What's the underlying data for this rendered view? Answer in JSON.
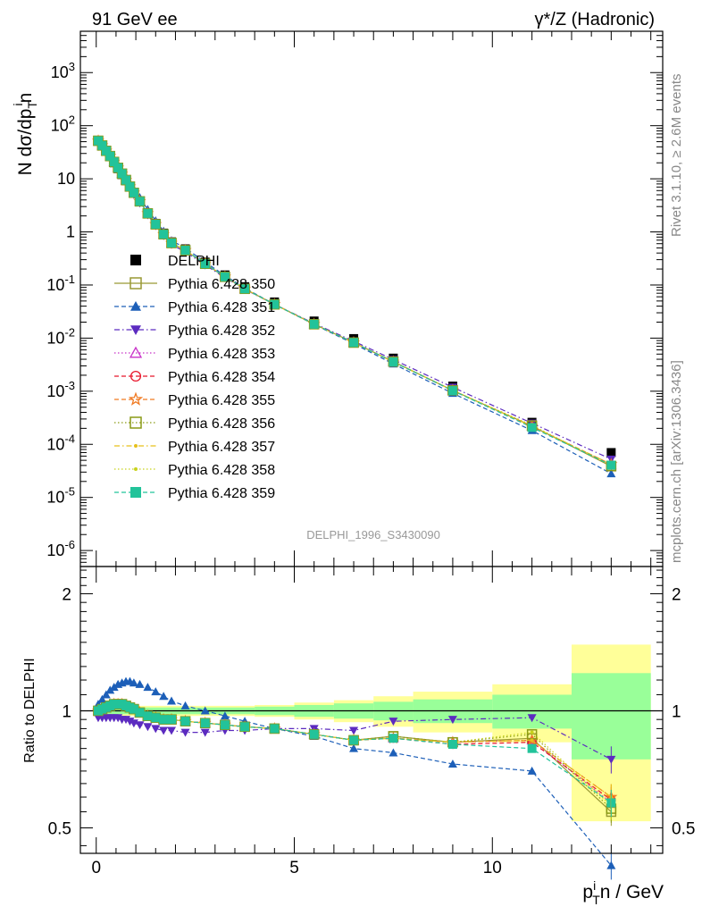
{
  "header": {
    "left": "91 GeV ee",
    "right": "γ*/Z (Hadronic)"
  },
  "side_labels": {
    "rivet": "Rivet 3.1.10, ≥ 2.6M events",
    "mcplots": "mcplots.cern.ch [arXiv:1306.3436]"
  },
  "analysis_id": "DELPHI_1996_S3430090",
  "y_label_main": {
    "a": "N dσ/dp",
    "sub": "T",
    "sup": "i",
    "b": "n"
  },
  "y_label_ratio": "Ratio to DELPHI",
  "x_label": {
    "a": "p",
    "sup": "i",
    "sub": "T",
    "b": "n / GeV"
  },
  "legend_order": [
    "DELPHI",
    "Pythia 6.428 350",
    "Pythia 6.428 351",
    "Pythia 6.428 352",
    "Pythia 6.428 353",
    "Pythia 6.428 354",
    "Pythia 6.428 355",
    "Pythia 6.428 356",
    "Pythia 6.428 357",
    "Pythia 6.428 358",
    "Pythia 6.428 359"
  ],
  "chart_data": [
    {
      "type": "scatter",
      "panel": "main",
      "x_range": [
        -0.4,
        14.3
      ],
      "ylim": [
        5e-07,
        6000
      ],
      "log_y": true,
      "y_tick_labels": [
        "10^-6",
        "10^-5",
        "10^-4",
        "10^-3",
        "10^-2",
        "10^-1",
        "1",
        "10",
        "10^2",
        "10^3"
      ],
      "x": [
        0.05,
        0.15,
        0.25,
        0.35,
        0.45,
        0.55,
        0.65,
        0.75,
        0.85,
        0.95,
        1.1,
        1.3,
        1.5,
        1.7,
        1.9,
        2.25,
        2.75,
        3.25,
        3.75,
        4.5,
        5.5,
        6.5,
        7.5,
        9.0,
        11.0,
        13.0
      ],
      "data": {
        "name": "DELPHI",
        "values": [
          52,
          42,
          33,
          26,
          20,
          15.5,
          12,
          9.2,
          7.0,
          5.4,
          3.8,
          2.3,
          1.45,
          0.95,
          0.65,
          0.48,
          0.27,
          0.155,
          0.093,
          0.048,
          0.021,
          0.0098,
          0.0042,
          0.00125,
          0.00026,
          7e-05
        ],
        "color": "#000000",
        "marker": "filled-square"
      },
      "series": [
        {
          "name": "Pythia 6.428 350",
          "color": "#999933",
          "marker": "open-square",
          "line": "solid"
        },
        {
          "name": "Pythia 6.428 351",
          "color": "#1d5fb8",
          "marker": "filled-triangle-up",
          "line": "dashed"
        },
        {
          "name": "Pythia 6.428 352",
          "color": "#5c2bc0",
          "marker": "filled-triangle-down",
          "line": "dashdot"
        },
        {
          "name": "Pythia 6.428 353",
          "color": "#c832c8",
          "marker": "open-triangle-up",
          "line": "dotted"
        },
        {
          "name": "Pythia 6.428 354",
          "color": "#e8162b",
          "marker": "open-circle",
          "line": "dashed"
        },
        {
          "name": "Pythia 6.428 355",
          "color": "#f07a22",
          "marker": "open-star",
          "line": "dashed"
        },
        {
          "name": "Pythia 6.428 356",
          "color": "#8a9a16",
          "marker": "open-square",
          "line": "dotted"
        },
        {
          "name": "Pythia 6.428 357",
          "color": "#e6c01a",
          "marker": "small-dot",
          "line": "dashdot"
        },
        {
          "name": "Pythia 6.428 358",
          "color": "#c8d21c",
          "marker": "small-dot",
          "line": "dotted"
        },
        {
          "name": "Pythia 6.428 359",
          "color": "#22c39a",
          "marker": "filled-square",
          "line": "dashed"
        }
      ]
    },
    {
      "type": "scatter",
      "panel": "ratio",
      "x_range": [
        -0.4,
        14.3
      ],
      "ylim": [
        0.43,
        2.35
      ],
      "log_y": true,
      "y_tick_labels": [
        "0.5",
        "1",
        "2"
      ],
      "reference_line": 1,
      "uncertainty_bins": [
        {
          "x0": 0,
          "x1": 4,
          "stat": 0.02,
          "total": 0.03
        },
        {
          "x0": 4,
          "x1": 5,
          "stat": 0.025,
          "total": 0.035
        },
        {
          "x0": 5,
          "x1": 6,
          "stat": 0.035,
          "total": 0.05
        },
        {
          "x0": 6,
          "x1": 7,
          "stat": 0.045,
          "total": 0.065
        },
        {
          "x0": 7,
          "x1": 8,
          "stat": 0.055,
          "total": 0.09
        },
        {
          "x0": 8,
          "x1": 10,
          "stat": 0.07,
          "total": 0.12
        },
        {
          "x0": 10,
          "x1": 12,
          "stat": 0.1,
          "total": 0.17
        },
        {
          "x0": 12,
          "x1": 14,
          "stat": 0.25,
          "total": 0.48
        }
      ],
      "ratios": {
        "Pythia 6.428 350": [
          1.0,
          1.01,
          1.02,
          1.03,
          1.04,
          1.04,
          1.04,
          1.03,
          1.02,
          1.01,
          0.99,
          0.97,
          0.96,
          0.95,
          0.95,
          0.94,
          0.93,
          0.92,
          0.91,
          0.9,
          0.87,
          0.84,
          0.86,
          0.83,
          0.85,
          0.55
        ],
        "Pythia 6.428 351": [
          1.04,
          1.07,
          1.1,
          1.13,
          1.15,
          1.17,
          1.18,
          1.19,
          1.19,
          1.18,
          1.17,
          1.15,
          1.12,
          1.09,
          1.06,
          1.03,
          1.0,
          0.97,
          0.94,
          0.9,
          0.86,
          0.8,
          0.78,
          0.73,
          0.7,
          0.4
        ],
        "Pythia 6.428 352": [
          0.96,
          0.96,
          0.96,
          0.96,
          0.96,
          0.96,
          0.95,
          0.95,
          0.94,
          0.93,
          0.92,
          0.91,
          0.9,
          0.89,
          0.89,
          0.88,
          0.88,
          0.89,
          0.89,
          0.9,
          0.9,
          0.89,
          0.94,
          0.95,
          0.96,
          0.75
        ],
        "Pythia 6.428 353": [
          1.0,
          1.01,
          1.02,
          1.03,
          1.04,
          1.04,
          1.04,
          1.03,
          1.02,
          1.01,
          0.99,
          0.97,
          0.96,
          0.95,
          0.95,
          0.94,
          0.93,
          0.92,
          0.91,
          0.9,
          0.87,
          0.84,
          0.85,
          0.83,
          0.84,
          0.58
        ],
        "Pythia 6.428 354": [
          1.0,
          1.01,
          1.02,
          1.03,
          1.04,
          1.04,
          1.04,
          1.03,
          1.02,
          1.01,
          0.99,
          0.97,
          0.96,
          0.95,
          0.95,
          0.94,
          0.93,
          0.92,
          0.91,
          0.9,
          0.87,
          0.84,
          0.85,
          0.82,
          0.83,
          0.59
        ],
        "Pythia 6.428 355": [
          1.0,
          1.01,
          1.02,
          1.03,
          1.04,
          1.04,
          1.04,
          1.03,
          1.02,
          1.01,
          0.99,
          0.97,
          0.96,
          0.95,
          0.95,
          0.94,
          0.93,
          0.92,
          0.91,
          0.9,
          0.87,
          0.84,
          0.85,
          0.83,
          0.84,
          0.6
        ],
        "Pythia 6.428 356": [
          1.0,
          1.01,
          1.02,
          1.03,
          1.04,
          1.04,
          1.04,
          1.03,
          1.02,
          1.01,
          0.99,
          0.97,
          0.96,
          0.95,
          0.95,
          0.94,
          0.93,
          0.92,
          0.91,
          0.9,
          0.87,
          0.84,
          0.86,
          0.83,
          0.87,
          0.56
        ],
        "Pythia 6.428 357": [
          1.0,
          1.01,
          1.02,
          1.03,
          1.04,
          1.04,
          1.04,
          1.03,
          1.02,
          1.01,
          0.99,
          0.97,
          0.96,
          0.95,
          0.95,
          0.94,
          0.93,
          0.92,
          0.91,
          0.9,
          0.87,
          0.84,
          0.85,
          0.83,
          0.84,
          0.6
        ],
        "Pythia 6.428 358": [
          1.0,
          1.01,
          1.02,
          1.03,
          1.04,
          1.04,
          1.04,
          1.03,
          1.02,
          1.01,
          0.99,
          0.97,
          0.96,
          0.95,
          0.95,
          0.94,
          0.93,
          0.92,
          0.91,
          0.9,
          0.87,
          0.84,
          0.85,
          0.83,
          0.88,
          0.57
        ],
        "Pythia 6.428 359": [
          1.0,
          1.01,
          1.02,
          1.03,
          1.04,
          1.04,
          1.04,
          1.03,
          1.02,
          1.01,
          0.99,
          0.97,
          0.96,
          0.95,
          0.95,
          0.94,
          0.93,
          0.92,
          0.91,
          0.9,
          0.87,
          0.84,
          0.85,
          0.82,
          0.8,
          0.58
        ]
      }
    }
  ]
}
